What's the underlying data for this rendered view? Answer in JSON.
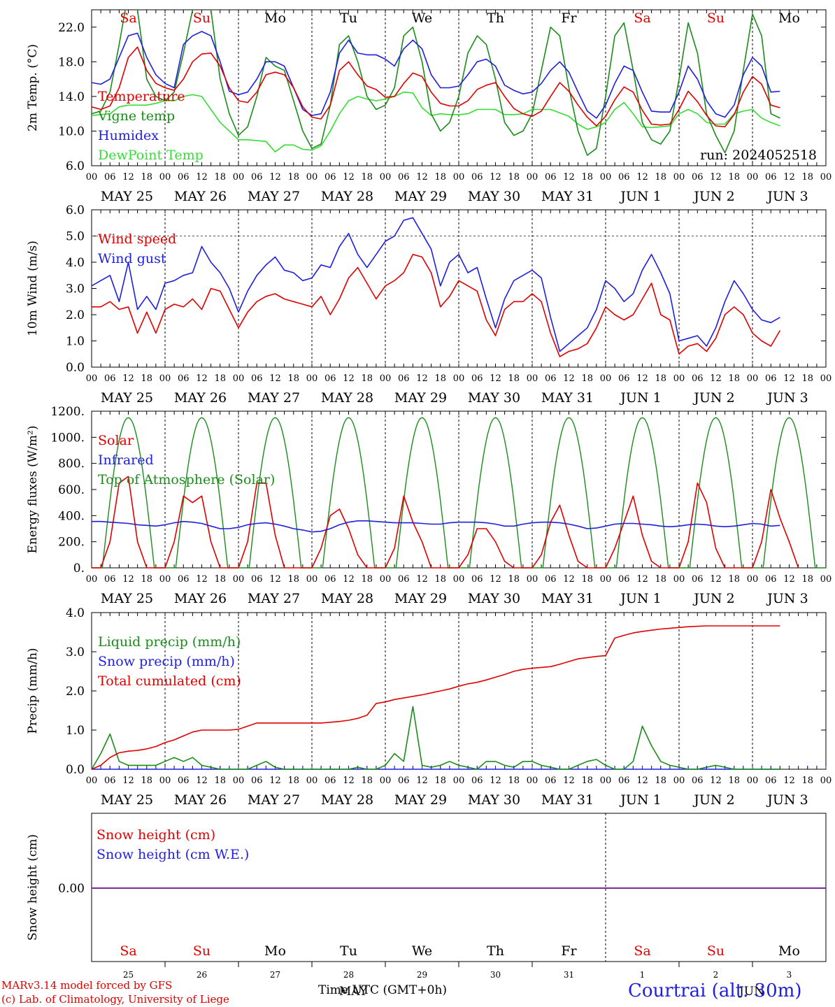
{
  "run_label": "run: 2024052518",
  "weekdays": [
    "Sa",
    "Su",
    "Mo",
    "Tu",
    "We",
    "Th",
    "Fr",
    "Sa",
    "Su",
    "Mo"
  ],
  "weekday_colors": [
    "#e00000",
    "#e00000",
    "#000000",
    "#000000",
    "#000000",
    "#000000",
    "#000000",
    "#e00000",
    "#e00000",
    "#000000"
  ],
  "date_labels": [
    "MAY 25",
    "MAY 26",
    "MAY 27",
    "MAY 28",
    "MAY 29",
    "MAY 30",
    "MAY 31",
    "JUN  1",
    "JUN  2",
    "JUN  3"
  ],
  "day_numbers": [
    "25",
    "26",
    "27",
    "28",
    "29",
    "30",
    "31",
    "1",
    "2",
    "3"
  ],
  "hour_ticks": [
    "00",
    "06",
    "12",
    "18"
  ],
  "bottom_xlabel": "Time UTC (GMT+0h)",
  "bottom_month_overlay": [
    "MAY",
    "JUN"
  ],
  "footer": {
    "model": "MARv3.14 model forced by GFS",
    "credit": "(c) Lab. of Climatology, University of Liege",
    "location": "Courtrai (alt. 30m)"
  },
  "colors": {
    "red": "#e00000",
    "green": "#1a8c1a",
    "blue": "#1f1fdd",
    "lightgreen": "#33dd33",
    "purple": "#7a2a9a"
  },
  "chart_data": [
    {
      "type": "line",
      "ylabel": "2m Temp. (°C)",
      "ylim": [
        6,
        24
      ],
      "yticks": [
        "6.0",
        "10.0",
        "14.0",
        "18.0",
        "22.0"
      ],
      "ytick_values": [
        6,
        10,
        14,
        18,
        22
      ],
      "x_unit": "hours since 2024-05-25 00 UTC, 3-hourly",
      "series": [
        {
          "name": "Temperature",
          "color": "#e00000",
          "values": [
            12.8,
            12.5,
            12.9,
            15.0,
            18.5,
            19.7,
            17.0,
            15.5,
            15.0,
            14.7,
            16.0,
            18.0,
            18.9,
            19.0,
            17.5,
            15.0,
            13.5,
            13.3,
            14.5,
            16.5,
            16.8,
            16.5,
            15.0,
            12.8,
            11.6,
            11.4,
            13.0,
            17.0,
            18.0,
            16.5,
            15.2,
            14.8,
            13.9,
            14.0,
            15.5,
            16.7,
            16.3,
            14.5,
            13.2,
            12.9,
            12.9,
            13.5,
            14.8,
            15.3,
            15.6,
            14.0,
            12.6,
            12.0,
            11.7,
            12.3,
            14.0,
            15.6,
            14.6,
            13.0,
            11.6,
            10.6,
            11.7,
            13.6,
            15.1,
            14.5,
            12.4,
            10.8,
            10.7,
            10.8,
            12.5,
            14.6,
            13.4,
            11.8,
            10.6,
            10.5,
            11.9,
            14.5,
            16.3,
            15.4,
            13.0,
            12.7
          ]
        },
        {
          "name": "Vigne temp",
          "color": "#1a8c1a",
          "values": [
            12.0,
            12.3,
            14.5,
            20.0,
            26.0,
            24.0,
            16.0,
            14.0,
            13.5,
            14.5,
            19.0,
            24.0,
            25.0,
            24.0,
            16.0,
            12.0,
            9.5,
            10.5,
            14.0,
            18.5,
            17.5,
            17.0,
            13.5,
            10.0,
            8.0,
            8.5,
            13.0,
            20.0,
            21.0,
            18.0,
            14.0,
            12.5,
            13.0,
            15.0,
            21.0,
            22.0,
            18.0,
            12.0,
            10.0,
            11.0,
            14.0,
            19.0,
            21.0,
            20.0,
            16.0,
            11.0,
            9.5,
            10.0,
            12.0,
            17.0,
            22.0,
            21.0,
            15.0,
            10.0,
            7.2,
            8.0,
            14.0,
            21.0,
            22.5,
            17.0,
            11.0,
            9.0,
            8.5,
            10.0,
            16.0,
            22.5,
            19.0,
            12.0,
            9.5,
            7.5,
            10.0,
            17.0,
            23.5,
            21.0,
            12.0,
            11.5
          ]
        },
        {
          "name": "Humidex",
          "color": "#1f1fdd",
          "values": [
            15.6,
            15.4,
            16.0,
            18.5,
            21.0,
            21.3,
            18.5,
            16.5,
            15.5,
            15.0,
            20.0,
            21.0,
            21.5,
            21.0,
            18.0,
            14.6,
            14.2,
            14.5,
            16.0,
            18.0,
            18.0,
            17.5,
            15.0,
            12.5,
            11.8,
            12.0,
            14.5,
            19.0,
            20.5,
            19.0,
            18.8,
            18.8,
            18.3,
            17.5,
            19.5,
            20.5,
            19.5,
            16.5,
            15.0,
            15.0,
            15.2,
            16.5,
            18.0,
            18.3,
            17.5,
            15.3,
            14.7,
            14.3,
            14.5,
            15.5,
            17.0,
            18.0,
            16.8,
            14.5,
            12.3,
            11.5,
            13.0,
            15.5,
            17.5,
            17.0,
            14.5,
            12.3,
            12.2,
            12.2,
            14.5,
            17.5,
            16.0,
            13.5,
            12.0,
            11.6,
            13.0,
            16.5,
            18.5,
            17.5,
            14.5,
            14.6
          ]
        },
        {
          "name": "DewPoint Temp",
          "color": "#33dd33",
          "values": [
            11.8,
            11.9,
            12.0,
            12.8,
            13.0,
            13.0,
            13.0,
            13.2,
            13.5,
            13.5,
            14.0,
            14.2,
            14.0,
            12.5,
            11.0,
            10.0,
            9.0,
            9.0,
            8.9,
            8.8,
            7.6,
            8.4,
            8.4,
            7.9,
            7.8,
            8.3,
            10.0,
            12.0,
            13.5,
            14.0,
            13.7,
            13.5,
            13.7,
            14.0,
            14.5,
            14.4,
            12.7,
            11.8,
            12.0,
            11.9,
            11.9,
            12.0,
            12.5,
            12.5,
            12.5,
            11.9,
            11.9,
            12.0,
            12.5,
            12.5,
            12.5,
            12.1,
            11.7,
            10.8,
            10.2,
            10.5,
            11.0,
            12.5,
            13.3,
            12.0,
            10.5,
            10.4,
            10.5,
            10.6,
            12.0,
            12.5,
            12.0,
            11.0,
            10.8,
            10.8,
            12.0,
            12.3,
            12.5,
            11.5,
            11.0,
            10.6
          ]
        }
      ]
    },
    {
      "type": "line",
      "ylabel": "10m Wind (m/s)",
      "ylim": [
        0,
        6
      ],
      "yticks": [
        "0.0",
        "1.0",
        "2.0",
        "3.0",
        "4.0",
        "5.0",
        "6.0"
      ],
      "ytick_values": [
        0,
        1,
        2,
        3,
        4,
        5,
        6
      ],
      "ref_line": 5.0,
      "series": [
        {
          "name": "Wind speed",
          "color": "#e00000",
          "values": [
            2.3,
            2.3,
            2.5,
            2.2,
            2.3,
            1.3,
            2.1,
            1.3,
            2.2,
            2.4,
            2.3,
            2.6,
            2.2,
            3.0,
            2.9,
            2.2,
            1.5,
            2.1,
            2.5,
            2.7,
            2.8,
            2.6,
            2.5,
            2.4,
            2.3,
            2.7,
            2.0,
            2.6,
            3.4,
            3.8,
            3.2,
            2.6,
            3.1,
            3.3,
            3.6,
            4.3,
            4.2,
            3.6,
            2.3,
            2.7,
            3.3,
            3.1,
            2.9,
            1.8,
            1.2,
            2.2,
            2.5,
            2.5,
            2.8,
            2.5,
            1.3,
            0.4,
            0.6,
            0.7,
            0.9,
            1.5,
            2.3,
            2.0,
            1.8,
            2.0,
            2.6,
            3.2,
            2.0,
            1.8,
            0.5,
            0.8,
            0.9,
            0.6,
            1.1,
            2.0,
            2.3,
            2.0,
            1.3,
            1.0,
            0.8,
            1.4
          ]
        },
        {
          "name": "Wind gust",
          "color": "#1f1fdd",
          "values": [
            3.1,
            3.3,
            3.5,
            2.5,
            4.0,
            2.2,
            2.7,
            2.2,
            3.2,
            3.3,
            3.5,
            3.6,
            4.6,
            4.0,
            3.6,
            3.0,
            2.1,
            2.9,
            3.5,
            3.9,
            4.2,
            3.7,
            3.6,
            3.3,
            3.4,
            3.9,
            3.8,
            4.6,
            5.1,
            4.3,
            3.8,
            4.3,
            4.8,
            5.0,
            5.6,
            5.7,
            5.1,
            4.5,
            3.1,
            4.0,
            4.3,
            3.6,
            3.8,
            2.6,
            1.5,
            2.6,
            3.3,
            3.5,
            3.7,
            3.4,
            1.9,
            0.6,
            0.9,
            1.2,
            1.5,
            2.2,
            3.3,
            3.0,
            2.5,
            2.8,
            3.7,
            4.3,
            3.6,
            2.8,
            1.0,
            1.1,
            1.2,
            0.8,
            1.5,
            2.5,
            3.3,
            2.8,
            2.2,
            1.8,
            1.7,
            1.9
          ]
        }
      ]
    },
    {
      "type": "line",
      "ylabel": "Energy fluxes (W/m²)",
      "ylim": [
        0,
        1200
      ],
      "yticks": [
        "0.",
        "200.",
        "400.",
        "600.",
        "800.",
        "1000.",
        "1200."
      ],
      "ytick_values": [
        0,
        200,
        400,
        600,
        800,
        1000,
        1200
      ],
      "toa_peak": 1150,
      "daylight_hours": [
        3.5,
        20.5
      ],
      "series": [
        {
          "name": "Solar",
          "color": "#e00000",
          "values": [
            0,
            0,
            200,
            650,
            700,
            200,
            0,
            0,
            0,
            200,
            550,
            500,
            550,
            200,
            0,
            0,
            0,
            200,
            650,
            650,
            250,
            0,
            0,
            0,
            0,
            150,
            400,
            450,
            300,
            100,
            0,
            0,
            0,
            150,
            550,
            350,
            200,
            0,
            0,
            0,
            0,
            100,
            300,
            300,
            200,
            50,
            0,
            0,
            0,
            100,
            350,
            480,
            250,
            50,
            0,
            0,
            0,
            150,
            350,
            550,
            250,
            50,
            0,
            0,
            0,
            200,
            650,
            500,
            150,
            0,
            0,
            0,
            0,
            200,
            600,
            380,
            200,
            0
          ]
        },
        {
          "name": "Infrared",
          "color": "#1f1fdd",
          "values": [
            355,
            355,
            350,
            345,
            340,
            330,
            325,
            320,
            330,
            345,
            355,
            350,
            340,
            320,
            300,
            300,
            310,
            330,
            340,
            345,
            335,
            320,
            300,
            290,
            275,
            280,
            300,
            330,
            350,
            360,
            360,
            355,
            350,
            345,
            345,
            345,
            340,
            335,
            335,
            345,
            350,
            350,
            350,
            345,
            335,
            320,
            320,
            335,
            345,
            350,
            350,
            345,
            335,
            320,
            300,
            305,
            320,
            335,
            340,
            340,
            335,
            330,
            320,
            315,
            320,
            330,
            335,
            330,
            320,
            315,
            320,
            330,
            340,
            335,
            320,
            325
          ]
        },
        {
          "name": "Top of Atmosphere (Solar)",
          "color": "#1a8c1a",
          "values": []
        }
      ]
    },
    {
      "type": "line",
      "ylabel": "Precip (mm/h)",
      "ylim": [
        0,
        4
      ],
      "yticks": [
        "0.0",
        "1.0",
        "2.0",
        "3.0",
        "4.0"
      ],
      "ytick_values": [
        0,
        1,
        2,
        3,
        4
      ],
      "series": [
        {
          "name": "Liquid precip (mm/h)",
          "color": "#1a8c1a",
          "values": [
            0,
            0.4,
            0.9,
            0.2,
            0.1,
            0.1,
            0.1,
            0.1,
            0.2,
            0.3,
            0.2,
            0.3,
            0.1,
            0.05,
            0,
            0,
            0,
            0,
            0.1,
            0.2,
            0.05,
            0,
            0,
            0,
            0,
            0,
            0,
            0,
            0,
            0.05,
            0,
            0,
            0.1,
            0.4,
            0.2,
            1.6,
            0.1,
            0.05,
            0.1,
            0.2,
            0.1,
            0.05,
            0,
            0.2,
            0.2,
            0.1,
            0.05,
            0.2,
            0.2,
            0.1,
            0.05,
            0,
            0,
            0.1,
            0.2,
            0.25,
            0.1,
            0,
            0,
            0.2,
            1.1,
            0.6,
            0.2,
            0.1,
            0.05,
            0,
            0,
            0.05,
            0.1,
            0.05,
            0,
            0,
            0,
            0,
            0,
            0
          ]
        },
        {
          "name": "Snow precip (mm/h)",
          "color": "#1f1fdd",
          "values": [
            0,
            0,
            0,
            0,
            0,
            0,
            0,
            0,
            0,
            0,
            0,
            0,
            0,
            0,
            0,
            0,
            0,
            0,
            0,
            0,
            0,
            0,
            0,
            0,
            0,
            0,
            0,
            0,
            0,
            0,
            0,
            0,
            0,
            0,
            0,
            0,
            0,
            0,
            0,
            0,
            0,
            0,
            0,
            0,
            0,
            0,
            0,
            0,
            0,
            0,
            0,
            0,
            0,
            0,
            0,
            0,
            0,
            0,
            0,
            0,
            0,
            0,
            0,
            0,
            0,
            0,
            0,
            0,
            0,
            0,
            0,
            0,
            0,
            0,
            0,
            0
          ]
        },
        {
          "name": "Total cumulated (cm)",
          "color": "#e00000",
          "values": [
            0,
            0.1,
            0.3,
            0.42,
            0.46,
            0.48,
            0.52,
            0.58,
            0.68,
            0.75,
            0.85,
            0.95,
            1.0,
            1.0,
            1.0,
            1.0,
            1.02,
            1.1,
            1.18,
            1.18,
            1.18,
            1.18,
            1.18,
            1.18,
            1.18,
            1.18,
            1.2,
            1.22,
            1.25,
            1.3,
            1.38,
            1.68,
            1.72,
            1.78,
            1.82,
            1.86,
            1.9,
            1.95,
            2.0,
            2.05,
            2.12,
            2.18,
            2.22,
            2.28,
            2.35,
            2.42,
            2.5,
            2.55,
            2.58,
            2.6,
            2.62,
            2.68,
            2.75,
            2.82,
            2.85,
            2.88,
            2.9,
            3.35,
            3.42,
            3.48,
            3.52,
            3.55,
            3.58,
            3.6,
            3.62,
            3.64,
            3.65,
            3.66,
            3.66,
            3.66,
            3.66,
            3.66,
            3.66,
            3.66,
            3.66,
            3.66
          ]
        }
      ]
    },
    {
      "type": "line",
      "ylabel": "Snow height (cm)",
      "yticks": [
        "0.00"
      ],
      "ytick_values": [
        0
      ],
      "series": [
        {
          "name": "Snow height (cm)",
          "color": "#e00000",
          "values": [
            0,
            0
          ]
        },
        {
          "name": "Snow height (cm W.E.)",
          "color": "#1f1fdd",
          "values": [
            0,
            0
          ]
        }
      ]
    }
  ]
}
